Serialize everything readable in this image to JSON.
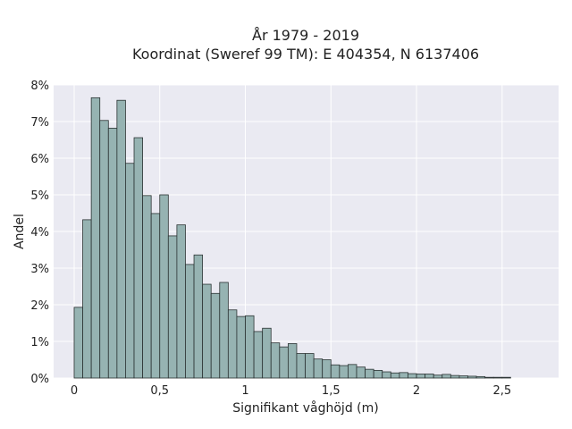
{
  "chart_data": {
    "type": "bar",
    "title": "År 1979 - 2019",
    "subtitle": "Koordinat (Sweref 99 TM): E 404354, N 6137406",
    "xlabel": "Signifikant våghöjd (m)",
    "ylabel": "Andel",
    "xlim": [
      -0.12,
      2.83
    ],
    "ylim": [
      0,
      8
    ],
    "x_ticks": [
      0,
      0.5,
      1,
      1.5,
      2,
      2.5
    ],
    "x_tick_labels": [
      "0",
      "0,5",
      "1",
      "1,5",
      "2",
      "2,5"
    ],
    "y_ticks": [
      0,
      1,
      2,
      3,
      4,
      5,
      6,
      7,
      8
    ],
    "y_tick_labels": [
      "0%",
      "1%",
      "2%",
      "3%",
      "4%",
      "5%",
      "6%",
      "7%",
      "8%"
    ],
    "grid": true,
    "bin_width": 0.05,
    "bin_start": 0.0,
    "values": [
      1.93,
      4.32,
      7.65,
      7.03,
      6.82,
      7.58,
      5.86,
      6.56,
      4.98,
      4.49,
      5.0,
      3.88,
      4.18,
      3.1,
      3.36,
      2.56,
      2.31,
      2.61,
      1.86,
      1.68,
      1.7,
      1.27,
      1.36,
      0.96,
      0.85,
      0.94,
      0.67,
      0.67,
      0.52,
      0.5,
      0.36,
      0.34,
      0.37,
      0.3,
      0.24,
      0.21,
      0.17,
      0.14,
      0.15,
      0.12,
      0.11,
      0.11,
      0.08,
      0.1,
      0.07,
      0.06,
      0.05,
      0.04,
      0.02,
      0.02,
      0.02
    ],
    "bar_color": "#96b3b2",
    "edge_color": "#2b3333",
    "background_color": "#eaeaf2",
    "grid_color": "#ffffff"
  }
}
